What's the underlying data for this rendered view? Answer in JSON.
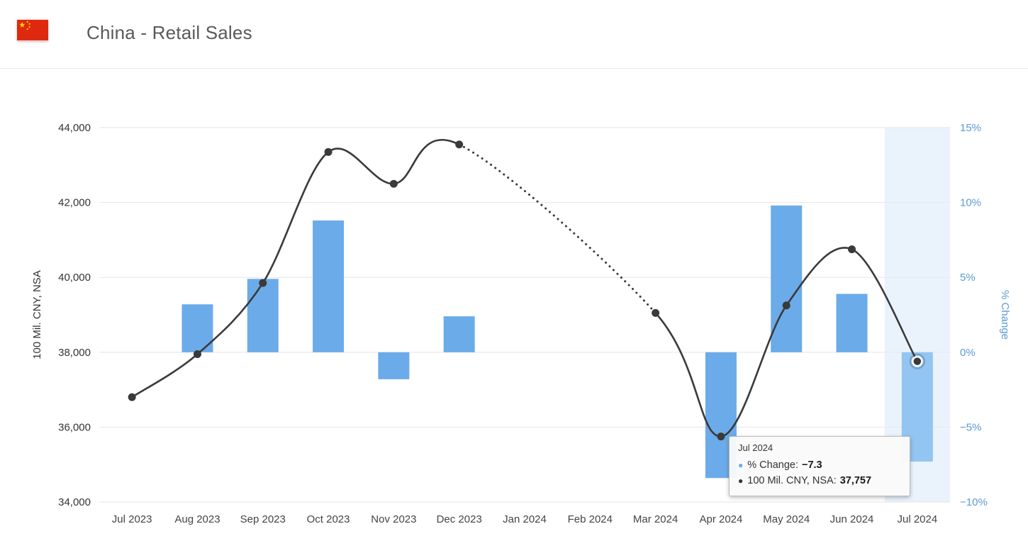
{
  "header": {
    "title": "China - Retail Sales",
    "flag": "china-flag"
  },
  "tooltip": {
    "title": "Jul 2024",
    "rows": [
      {
        "marker_color": "#6babe9",
        "label": "% Change:",
        "value": "−7.3"
      },
      {
        "marker_color": "#333333",
        "label": "100 Mil. CNY, NSA:",
        "value": "37,757"
      }
    ]
  },
  "chart_data": {
    "type": "bar+line dual-axis combo",
    "categories": [
      "Jul 2023",
      "Aug 2023",
      "Sep 2023",
      "Oct 2023",
      "Nov 2023",
      "Dec 2023",
      "Jan 2024",
      "Feb 2024",
      "Mar 2024",
      "Apr 2024",
      "May 2024",
      "Jun 2024",
      "Jul 2024"
    ],
    "series": [
      {
        "name": "% Change",
        "type": "bar",
        "axis": "right",
        "color": "#6babe9",
        "highlight_color": "#92c5f1",
        "values": [
          null,
          3.2,
          4.9,
          8.8,
          -1.8,
          2.4,
          null,
          null,
          null,
          -8.4,
          9.8,
          3.9,
          -7.3
        ]
      },
      {
        "name": "100 Mil. CNY, NSA",
        "type": "line",
        "axis": "left",
        "color": "#3a3a3a",
        "line_style": "smooth, dotted across missing Jan–Feb 2024 gap",
        "values": [
          36800,
          37950,
          39850,
          43350,
          42500,
          43550,
          null,
          null,
          39050,
          35750,
          39250,
          40750,
          37757
        ]
      }
    ],
    "left_axis": {
      "title": "100 Mil. CNY, NSA",
      "min": 34000,
      "max": 44000,
      "tick_step": 2000,
      "tick_labels": [
        "34,000",
        "36,000",
        "38,000",
        "40,000",
        "42,000",
        "44,000"
      ],
      "color": "#333333"
    },
    "right_axis": {
      "title": "% Change",
      "min": -10,
      "max": 15,
      "tick_step": 5,
      "tick_labels": [
        "−10%",
        "−5%",
        "0%",
        "5%",
        "10%",
        "15%"
      ],
      "color": "#5b9bd5"
    },
    "highlight_category": "Jul 2024",
    "highlight_band_color": "rgba(124,181,236,0.16)",
    "grid": "horizontal only",
    "gridline_color": "#e6e6e6",
    "legend": "none"
  }
}
